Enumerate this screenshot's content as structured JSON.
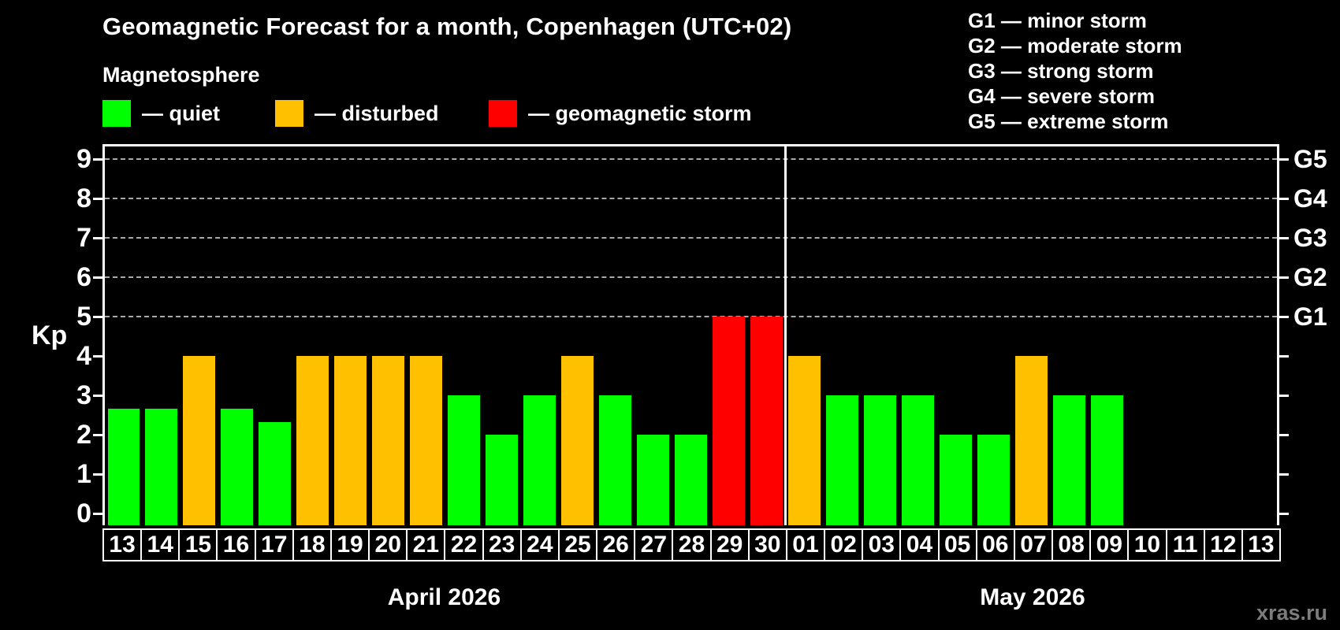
{
  "header": {
    "title": "Geomagnetic Forecast for a month, Copenhagen (UTC+02)",
    "subtitle": "Magnetosphere"
  },
  "legend": {
    "items": [
      {
        "key": "quiet",
        "label": "— quiet",
        "color": "#00ff00"
      },
      {
        "key": "disturbed",
        "label": "— disturbed",
        "color": "#ffc000"
      },
      {
        "key": "storm",
        "label": "— geomagnetic storm",
        "color": "#ff0000"
      }
    ]
  },
  "storm_scale": {
    "items": [
      "G1 — minor storm",
      "G2 — moderate storm",
      "G3 — strong storm",
      "G4 — severe storm",
      "G5 — extreme storm"
    ]
  },
  "watermark": "xras.ru",
  "chart_data": {
    "type": "bar",
    "ylabel": "Kp",
    "ylim": [
      0,
      9.4
    ],
    "yticks": [
      0,
      1,
      2,
      3,
      4,
      5,
      6,
      7,
      8,
      9
    ],
    "grid": "dashed horizontal lines at Kp 5-9 only",
    "gridlines": [
      5,
      6,
      7,
      8,
      9
    ],
    "right_axis": [
      {
        "label": "G5",
        "kp": 9
      },
      {
        "label": "G4",
        "kp": 8
      },
      {
        "label": "G3",
        "kp": 7
      },
      {
        "label": "G2",
        "kp": 6
      },
      {
        "label": "G1",
        "kp": 5
      }
    ],
    "status_colors": {
      "quiet": "#00ff00",
      "disturbed": "#ffc000",
      "storm": "#ff0000"
    },
    "months": [
      {
        "label": "April 2026",
        "start_index": 0,
        "day_count": 18
      },
      {
        "label": "May 2026",
        "start_index": 18,
        "day_count": 13
      }
    ],
    "month_boundary_after_index": 17,
    "days": [
      {
        "label": "13",
        "kp": 2.67,
        "status": "quiet"
      },
      {
        "label": "14",
        "kp": 2.67,
        "status": "quiet"
      },
      {
        "label": "15",
        "kp": 4,
        "status": "disturbed"
      },
      {
        "label": "16",
        "kp": 2.67,
        "status": "quiet"
      },
      {
        "label": "17",
        "kp": 2.33,
        "status": "quiet"
      },
      {
        "label": "18",
        "kp": 4,
        "status": "disturbed"
      },
      {
        "label": "19",
        "kp": 4,
        "status": "disturbed"
      },
      {
        "label": "20",
        "kp": 4,
        "status": "disturbed"
      },
      {
        "label": "21",
        "kp": 4,
        "status": "disturbed"
      },
      {
        "label": "22",
        "kp": 3,
        "status": "quiet"
      },
      {
        "label": "23",
        "kp": 2,
        "status": "quiet"
      },
      {
        "label": "24",
        "kp": 3,
        "status": "quiet"
      },
      {
        "label": "25",
        "kp": 4,
        "status": "disturbed"
      },
      {
        "label": "26",
        "kp": 3,
        "status": "quiet"
      },
      {
        "label": "27",
        "kp": 2,
        "status": "quiet"
      },
      {
        "label": "28",
        "kp": 2,
        "status": "quiet"
      },
      {
        "label": "29",
        "kp": 5,
        "status": "storm"
      },
      {
        "label": "30",
        "kp": 5,
        "status": "storm"
      },
      {
        "label": "01",
        "kp": 4,
        "status": "disturbed"
      },
      {
        "label": "02",
        "kp": 3,
        "status": "quiet"
      },
      {
        "label": "03",
        "kp": 3,
        "status": "quiet"
      },
      {
        "label": "04",
        "kp": 3,
        "status": "quiet"
      },
      {
        "label": "05",
        "kp": 2,
        "status": "quiet"
      },
      {
        "label": "06",
        "kp": 2,
        "status": "quiet"
      },
      {
        "label": "07",
        "kp": 4,
        "status": "disturbed"
      },
      {
        "label": "08",
        "kp": 3,
        "status": "quiet"
      },
      {
        "label": "09",
        "kp": 3,
        "status": "quiet"
      },
      {
        "label": "10",
        "kp": null,
        "status": null
      },
      {
        "label": "11",
        "kp": null,
        "status": null
      },
      {
        "label": "12",
        "kp": null,
        "status": null
      },
      {
        "label": "13",
        "kp": null,
        "status": null
      }
    ]
  }
}
